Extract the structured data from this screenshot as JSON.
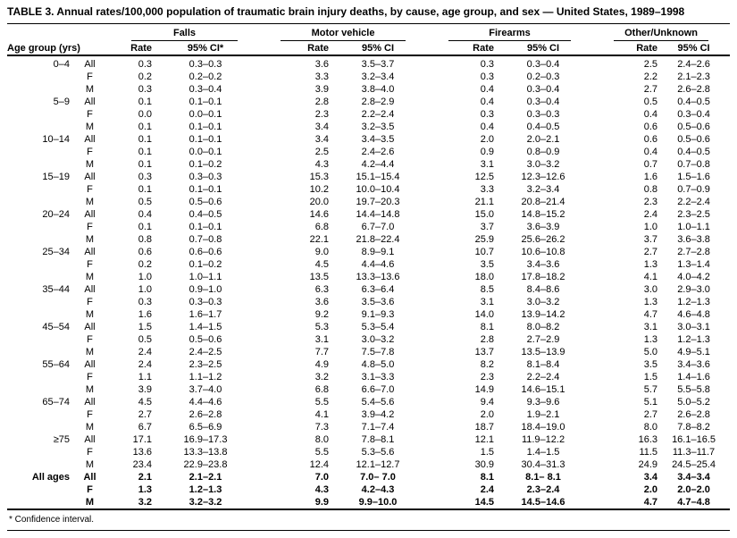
{
  "title": "TABLE 3. Annual rates/100,000 population of traumatic brain injury deaths, by cause, age group, and sex — United States, 1989–1998",
  "footnote": "* Confidence interval.",
  "table": {
    "age_group_header": "Age group (yrs)",
    "groups": [
      {
        "label": "Falls",
        "rate_header": "Rate",
        "ci_header": "95% CI*"
      },
      {
        "label": "Motor vehicle",
        "rate_header": "Rate",
        "ci_header": "95% CI"
      },
      {
        "label": "Firearms",
        "rate_header": "Rate",
        "ci_header": "95% CI"
      },
      {
        "label": "Other/Unknown",
        "rate_header": "Rate",
        "ci_header": "95% CI"
      }
    ],
    "rows": [
      {
        "age": "0–4",
        "sex": "All",
        "bold": false,
        "cells": [
          "0.3",
          "0.3–0.3",
          "3.6",
          "3.5–3.7",
          "0.3",
          "0.3–0.4",
          "2.5",
          "2.4–2.6"
        ]
      },
      {
        "age": "",
        "sex": "F",
        "bold": false,
        "cells": [
          "0.2",
          "0.2–0.2",
          "3.3",
          "3.2–3.4",
          "0.3",
          "0.2–0.3",
          "2.2",
          "2.1–2.3"
        ]
      },
      {
        "age": "",
        "sex": "M",
        "bold": false,
        "cells": [
          "0.3",
          "0.3–0.4",
          "3.9",
          "3.8–4.0",
          "0.4",
          "0.3–0.4",
          "2.7",
          "2.6–2.8"
        ]
      },
      {
        "age": "5–9",
        "sex": "All",
        "bold": false,
        "cells": [
          "0.1",
          "0.1–0.1",
          "2.8",
          "2.8–2.9",
          "0.4",
          "0.3–0.4",
          "0.5",
          "0.4–0.5"
        ]
      },
      {
        "age": "",
        "sex": "F",
        "bold": false,
        "cells": [
          "0.0",
          "0.0–0.1",
          "2.3",
          "2.2–2.4",
          "0.3",
          "0.3–0.3",
          "0.4",
          "0.3–0.4"
        ]
      },
      {
        "age": "",
        "sex": "M",
        "bold": false,
        "cells": [
          "0.1",
          "0.1–0.1",
          "3.4",
          "3.2–3.5",
          "0.4",
          "0.4–0.5",
          "0.6",
          "0.5–0.6"
        ]
      },
      {
        "age": "10–14",
        "sex": "All",
        "bold": false,
        "cells": [
          "0.1",
          "0.1–0.1",
          "3.4",
          "3.4–3.5",
          "2.0",
          "2.0–2.1",
          "0.6",
          "0.5–0.6"
        ]
      },
      {
        "age": "",
        "sex": "F",
        "bold": false,
        "cells": [
          "0.1",
          "0.0–0.1",
          "2.5",
          "2.4–2.6",
          "0.9",
          "0.8–0.9",
          "0.4",
          "0.4–0.5"
        ]
      },
      {
        "age": "",
        "sex": "M",
        "bold": false,
        "cells": [
          "0.1",
          "0.1–0.2",
          "4.3",
          "4.2–4.4",
          "3.1",
          "3.0–3.2",
          "0.7",
          "0.7–0.8"
        ]
      },
      {
        "age": "15–19",
        "sex": "All",
        "bold": false,
        "cells": [
          "0.3",
          "0.3–0.3",
          "15.3",
          "15.1–15.4",
          "12.5",
          "12.3–12.6",
          "1.6",
          "1.5–1.6"
        ]
      },
      {
        "age": "",
        "sex": "F",
        "bold": false,
        "cells": [
          "0.1",
          "0.1–0.1",
          "10.2",
          "10.0–10.4",
          "3.3",
          "3.2–3.4",
          "0.8",
          "0.7–0.9"
        ]
      },
      {
        "age": "",
        "sex": "M",
        "bold": false,
        "cells": [
          "0.5",
          "0.5–0.6",
          "20.0",
          "19.7–20.3",
          "21.1",
          "20.8–21.4",
          "2.3",
          "2.2–2.4"
        ]
      },
      {
        "age": "20–24",
        "sex": "All",
        "bold": false,
        "cells": [
          "0.4",
          "0.4–0.5",
          "14.6",
          "14.4–14.8",
          "15.0",
          "14.8–15.2",
          "2.4",
          "2.3–2.5"
        ]
      },
      {
        "age": "",
        "sex": "F",
        "bold": false,
        "cells": [
          "0.1",
          "0.1–0.1",
          "6.8",
          "6.7–7.0",
          "3.7",
          "3.6–3.9",
          "1.0",
          "1.0–1.1"
        ]
      },
      {
        "age": "",
        "sex": "M",
        "bold": false,
        "cells": [
          "0.8",
          "0.7–0.8",
          "22.1",
          "21.8–22.4",
          "25.9",
          "25.6–26.2",
          "3.7",
          "3.6–3.8"
        ]
      },
      {
        "age": "25–34",
        "sex": "All",
        "bold": false,
        "cells": [
          "0.6",
          "0.6–0.6",
          "9.0",
          "8.9–9.1",
          "10.7",
          "10.6–10.8",
          "2.7",
          "2.7–2.8"
        ]
      },
      {
        "age": "",
        "sex": "F",
        "bold": false,
        "cells": [
          "0.2",
          "0.1–0.2",
          "4.5",
          "4.4–4.6",
          "3.5",
          "3.4–3.6",
          "1.3",
          "1.3–1.4"
        ]
      },
      {
        "age": "",
        "sex": "M",
        "bold": false,
        "cells": [
          "1.0",
          "1.0–1.1",
          "13.5",
          "13.3–13.6",
          "18.0",
          "17.8–18.2",
          "4.1",
          "4.0–4.2"
        ]
      },
      {
        "age": "35–44",
        "sex": "All",
        "bold": false,
        "cells": [
          "1.0",
          "0.9–1.0",
          "6.3",
          "6.3–6.4",
          "8.5",
          "8.4–8.6",
          "3.0",
          "2.9–3.0"
        ]
      },
      {
        "age": "",
        "sex": "F",
        "bold": false,
        "cells": [
          "0.3",
          "0.3–0.3",
          "3.6",
          "3.5–3.6",
          "3.1",
          "3.0–3.2",
          "1.3",
          "1.2–1.3"
        ]
      },
      {
        "age": "",
        "sex": "M",
        "bold": false,
        "cells": [
          "1.6",
          "1.6–1.7",
          "9.2",
          "9.1–9.3",
          "14.0",
          "13.9–14.2",
          "4.7",
          "4.6–4.8"
        ]
      },
      {
        "age": "45–54",
        "sex": "All",
        "bold": false,
        "cells": [
          "1.5",
          "1.4–1.5",
          "5.3",
          "5.3–5.4",
          "8.1",
          "8.0–8.2",
          "3.1",
          "3.0–3.1"
        ]
      },
      {
        "age": "",
        "sex": "F",
        "bold": false,
        "cells": [
          "0.5",
          "0.5–0.6",
          "3.1",
          "3.0–3.2",
          "2.8",
          "2.7–2.9",
          "1.3",
          "1.2–1.3"
        ]
      },
      {
        "age": "",
        "sex": "M",
        "bold": false,
        "cells": [
          "2.4",
          "2.4–2.5",
          "7.7",
          "7.5–7.8",
          "13.7",
          "13.5–13.9",
          "5.0",
          "4.9–5.1"
        ]
      },
      {
        "age": "55–64",
        "sex": "All",
        "bold": false,
        "cells": [
          "2.4",
          "2.3–2.5",
          "4.9",
          "4.8–5.0",
          "8.2",
          "8.1–8.4",
          "3.5",
          "3.4–3.6"
        ]
      },
      {
        "age": "",
        "sex": "F",
        "bold": false,
        "cells": [
          "1.1",
          "1.1–1.2",
          "3.2",
          "3.1–3.3",
          "2.3",
          "2.2–2.4",
          "1.5",
          "1.4–1.6"
        ]
      },
      {
        "age": "",
        "sex": "M",
        "bold": false,
        "cells": [
          "3.9",
          "3.7–4.0",
          "6.8",
          "6.6–7.0",
          "14.9",
          "14.6–15.1",
          "5.7",
          "5.5–5.8"
        ]
      },
      {
        "age": "65–74",
        "sex": "All",
        "bold": false,
        "cells": [
          "4.5",
          "4.4–4.6",
          "5.5",
          "5.4–5.6",
          "9.4",
          "9.3–9.6",
          "5.1",
          "5.0–5.2"
        ]
      },
      {
        "age": "",
        "sex": "F",
        "bold": false,
        "cells": [
          "2.7",
          "2.6–2.8",
          "4.1",
          "3.9–4.2",
          "2.0",
          "1.9–2.1",
          "2.7",
          "2.6–2.8"
        ]
      },
      {
        "age": "",
        "sex": "M",
        "bold": false,
        "cells": [
          "6.7",
          "6.5–6.9",
          "7.3",
          "7.1–7.4",
          "18.7",
          "18.4–19.0",
          "8.0",
          "7.8–8.2"
        ]
      },
      {
        "age": "≥75",
        "sex": "All",
        "bold": false,
        "cells": [
          "17.1",
          "16.9–17.3",
          "8.0",
          "7.8–8.1",
          "12.1",
          "11.9–12.2",
          "16.3",
          "16.1–16.5"
        ]
      },
      {
        "age": "",
        "sex": "F",
        "bold": false,
        "cells": [
          "13.6",
          "13.3–13.8",
          "5.5",
          "5.3–5.6",
          "1.5",
          "1.4–1.5",
          "11.5",
          "11.3–11.7"
        ]
      },
      {
        "age": "",
        "sex": "M",
        "bold": false,
        "cells": [
          "23.4",
          "22.9–23.8",
          "12.4",
          "12.1–12.7",
          "30.9",
          "30.4–31.3",
          "24.9",
          "24.5–25.4"
        ]
      },
      {
        "age": "All ages",
        "sex": "All",
        "bold": true,
        "cells": [
          "2.1",
          "2.1–2.1",
          "7.0",
          "7.0– 7.0",
          "8.1",
          "8.1– 8.1",
          "3.4",
          "3.4–3.4"
        ]
      },
      {
        "age": "",
        "sex": "F",
        "bold": true,
        "cells": [
          "1.3",
          "1.2–1.3",
          "4.3",
          "4.2–4.3",
          "2.4",
          "2.3–2.4",
          "2.0",
          "2.0–2.0"
        ]
      },
      {
        "age": "",
        "sex": "M",
        "bold": true,
        "cells": [
          "3.2",
          "3.2–3.2",
          "9.9",
          "9.9–10.0",
          "14.5",
          "14.5–14.6",
          "4.7",
          "4.7–4.8"
        ]
      }
    ]
  }
}
